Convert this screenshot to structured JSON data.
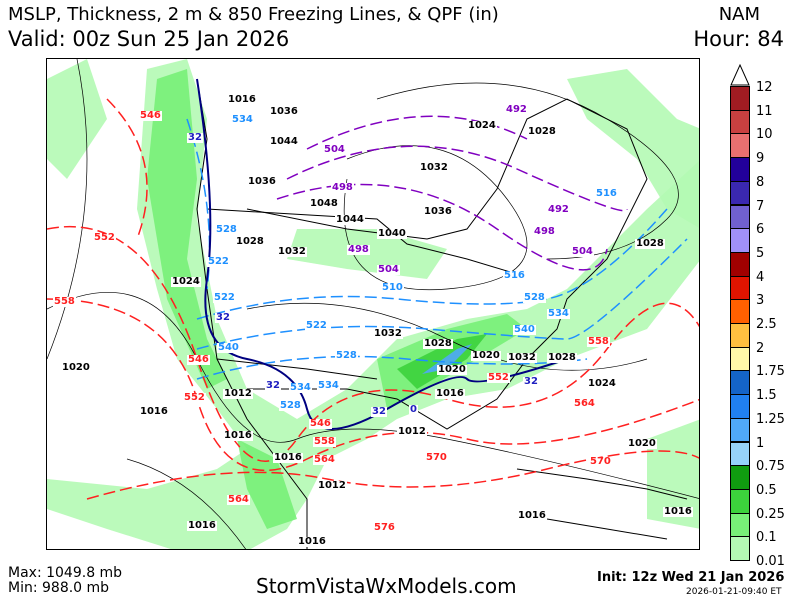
{
  "header": {
    "title": "MSLP, Thickness, 2 m & 850 Freezing Lines, & QPF (in)",
    "valid": "Valid: 00z Sun 25 Jan 2026",
    "model": "NAM",
    "hour": "Hour: 84"
  },
  "colorbar": {
    "labels": [
      "12",
      "11",
      "10",
      "9",
      "8",
      "7",
      "6",
      "5",
      "4",
      "3",
      "2.5",
      "2",
      "1.75",
      "1.5",
      "1.25",
      "1",
      "0.75",
      "0.5",
      "0.25",
      "0.1",
      "0.01"
    ],
    "colors": [
      "#a01c22",
      "#c84040",
      "#e87070",
      "#22009a",
      "#3a28b0",
      "#7060d0",
      "#a090f8",
      "#a00000",
      "#e01400",
      "#ff6000",
      "#ffc040",
      "#fff8a8",
      "#1464c8",
      "#2080f0",
      "#50a8f8",
      "#96d2fa",
      "#109c10",
      "#3cd23c",
      "#78f078",
      "#b4fab4"
    ]
  },
  "contour_labels": {
    "pressure": [
      "1016",
      "1036",
      "1044",
      "1036",
      "1048",
      "1044",
      "1032",
      "1036",
      "1040",
      "1028",
      "1032",
      "1028",
      "1024",
      "1032",
      "1028",
      "1020",
      "1020",
      "1016",
      "1012",
      "1016",
      "1012",
      "1016",
      "1012",
      "1016",
      "1016",
      "1024",
      "1020",
      "1016",
      "1016",
      "1028",
      "1024",
      "1028",
      "1020",
      "1032",
      "1016"
    ],
    "thickness_purple": [
      "504",
      "498",
      "492",
      "498",
      "504",
      "492",
      "498",
      "504"
    ],
    "thickness_blue": [
      "534",
      "528",
      "522",
      "516",
      "510",
      "522",
      "528",
      "534",
      "540",
      "528",
      "534",
      "540",
      "516",
      "522",
      "528",
      "534"
    ],
    "thickness_red": [
      "546",
      "552",
      "558",
      "546",
      "552",
      "558",
      "564",
      "570",
      "576",
      "564",
      "552",
      "558",
      "564",
      "570",
      "546"
    ],
    "freezing": [
      "32",
      "32",
      "32",
      "0",
      "32",
      "32"
    ]
  },
  "footer": {
    "max": "Max: 1049.8 mb",
    "min": "Min: 988.0 mb",
    "site": "StormVistaWxModels.com",
    "init": "Init: 12z Wed 21 Jan 2026",
    "stamp": "2026-01-21-09:40 ET"
  }
}
